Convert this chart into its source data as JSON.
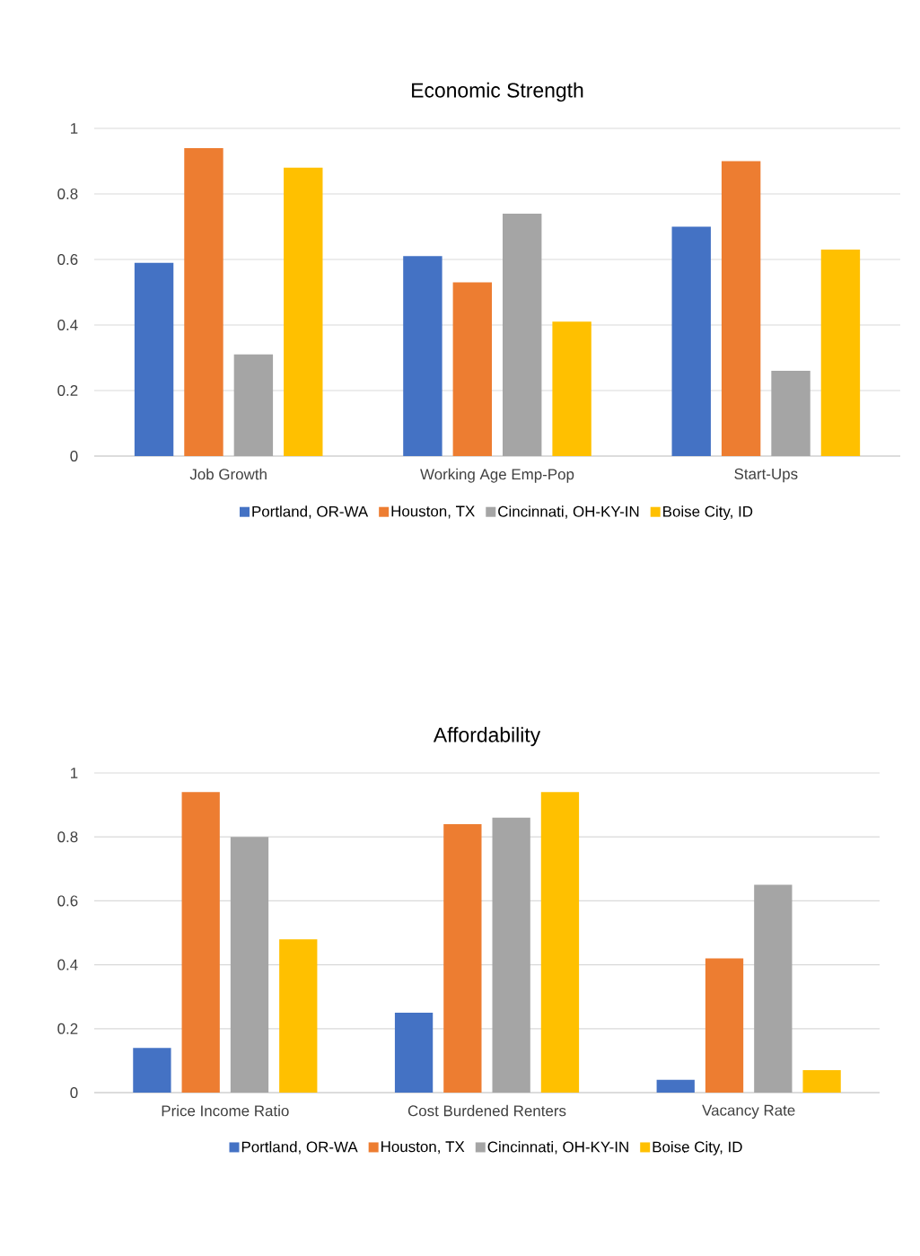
{
  "chart_data": [
    {
      "type": "bar",
      "title": "Economic Strength",
      "categories": [
        "Job Growth",
        "Working Age Emp-Pop",
        "Start-Ups"
      ],
      "series": [
        {
          "name": "Portland, OR-WA",
          "color": "#4472c4",
          "values": [
            0.59,
            0.61,
            0.7
          ]
        },
        {
          "name": "Houston, TX",
          "color": "#ed7d31",
          "values": [
            0.94,
            0.53,
            0.9
          ]
        },
        {
          "name": "Cincinnati, OH-KY-IN",
          "color": "#a5a5a5",
          "values": [
            0.31,
            0.74,
            0.26
          ]
        },
        {
          "name": "Boise City, ID",
          "color": "#ffc000",
          "values": [
            0.88,
            0.41,
            0.63
          ]
        }
      ],
      "ylim": [
        0,
        1
      ],
      "yticks": [
        0,
        0.2,
        0.4,
        0.6,
        0.8,
        1
      ],
      "grid": "y",
      "legend": "bottom"
    },
    {
      "type": "bar",
      "title": "Affordability",
      "categories": [
        "Price Income Ratio",
        "Cost Burdened Renters",
        "Vacancy Rate"
      ],
      "series": [
        {
          "name": "Portland, OR-WA",
          "color": "#4472c4",
          "values": [
            0.14,
            0.25,
            0.04
          ]
        },
        {
          "name": "Houston, TX",
          "color": "#ed7d31",
          "values": [
            0.94,
            0.84,
            0.42
          ]
        },
        {
          "name": "Cincinnati, OH-KY-IN",
          "color": "#a5a5a5",
          "values": [
            0.8,
            0.86,
            0.65
          ]
        },
        {
          "name": "Boise City, ID",
          "color": "#ffc000",
          "values": [
            0.48,
            0.94,
            0.07
          ]
        }
      ],
      "ylim": [
        0,
        1
      ],
      "yticks": [
        0,
        0.2,
        0.4,
        0.6,
        0.8,
        1
      ],
      "grid": "y",
      "legend": "bottom"
    }
  ]
}
